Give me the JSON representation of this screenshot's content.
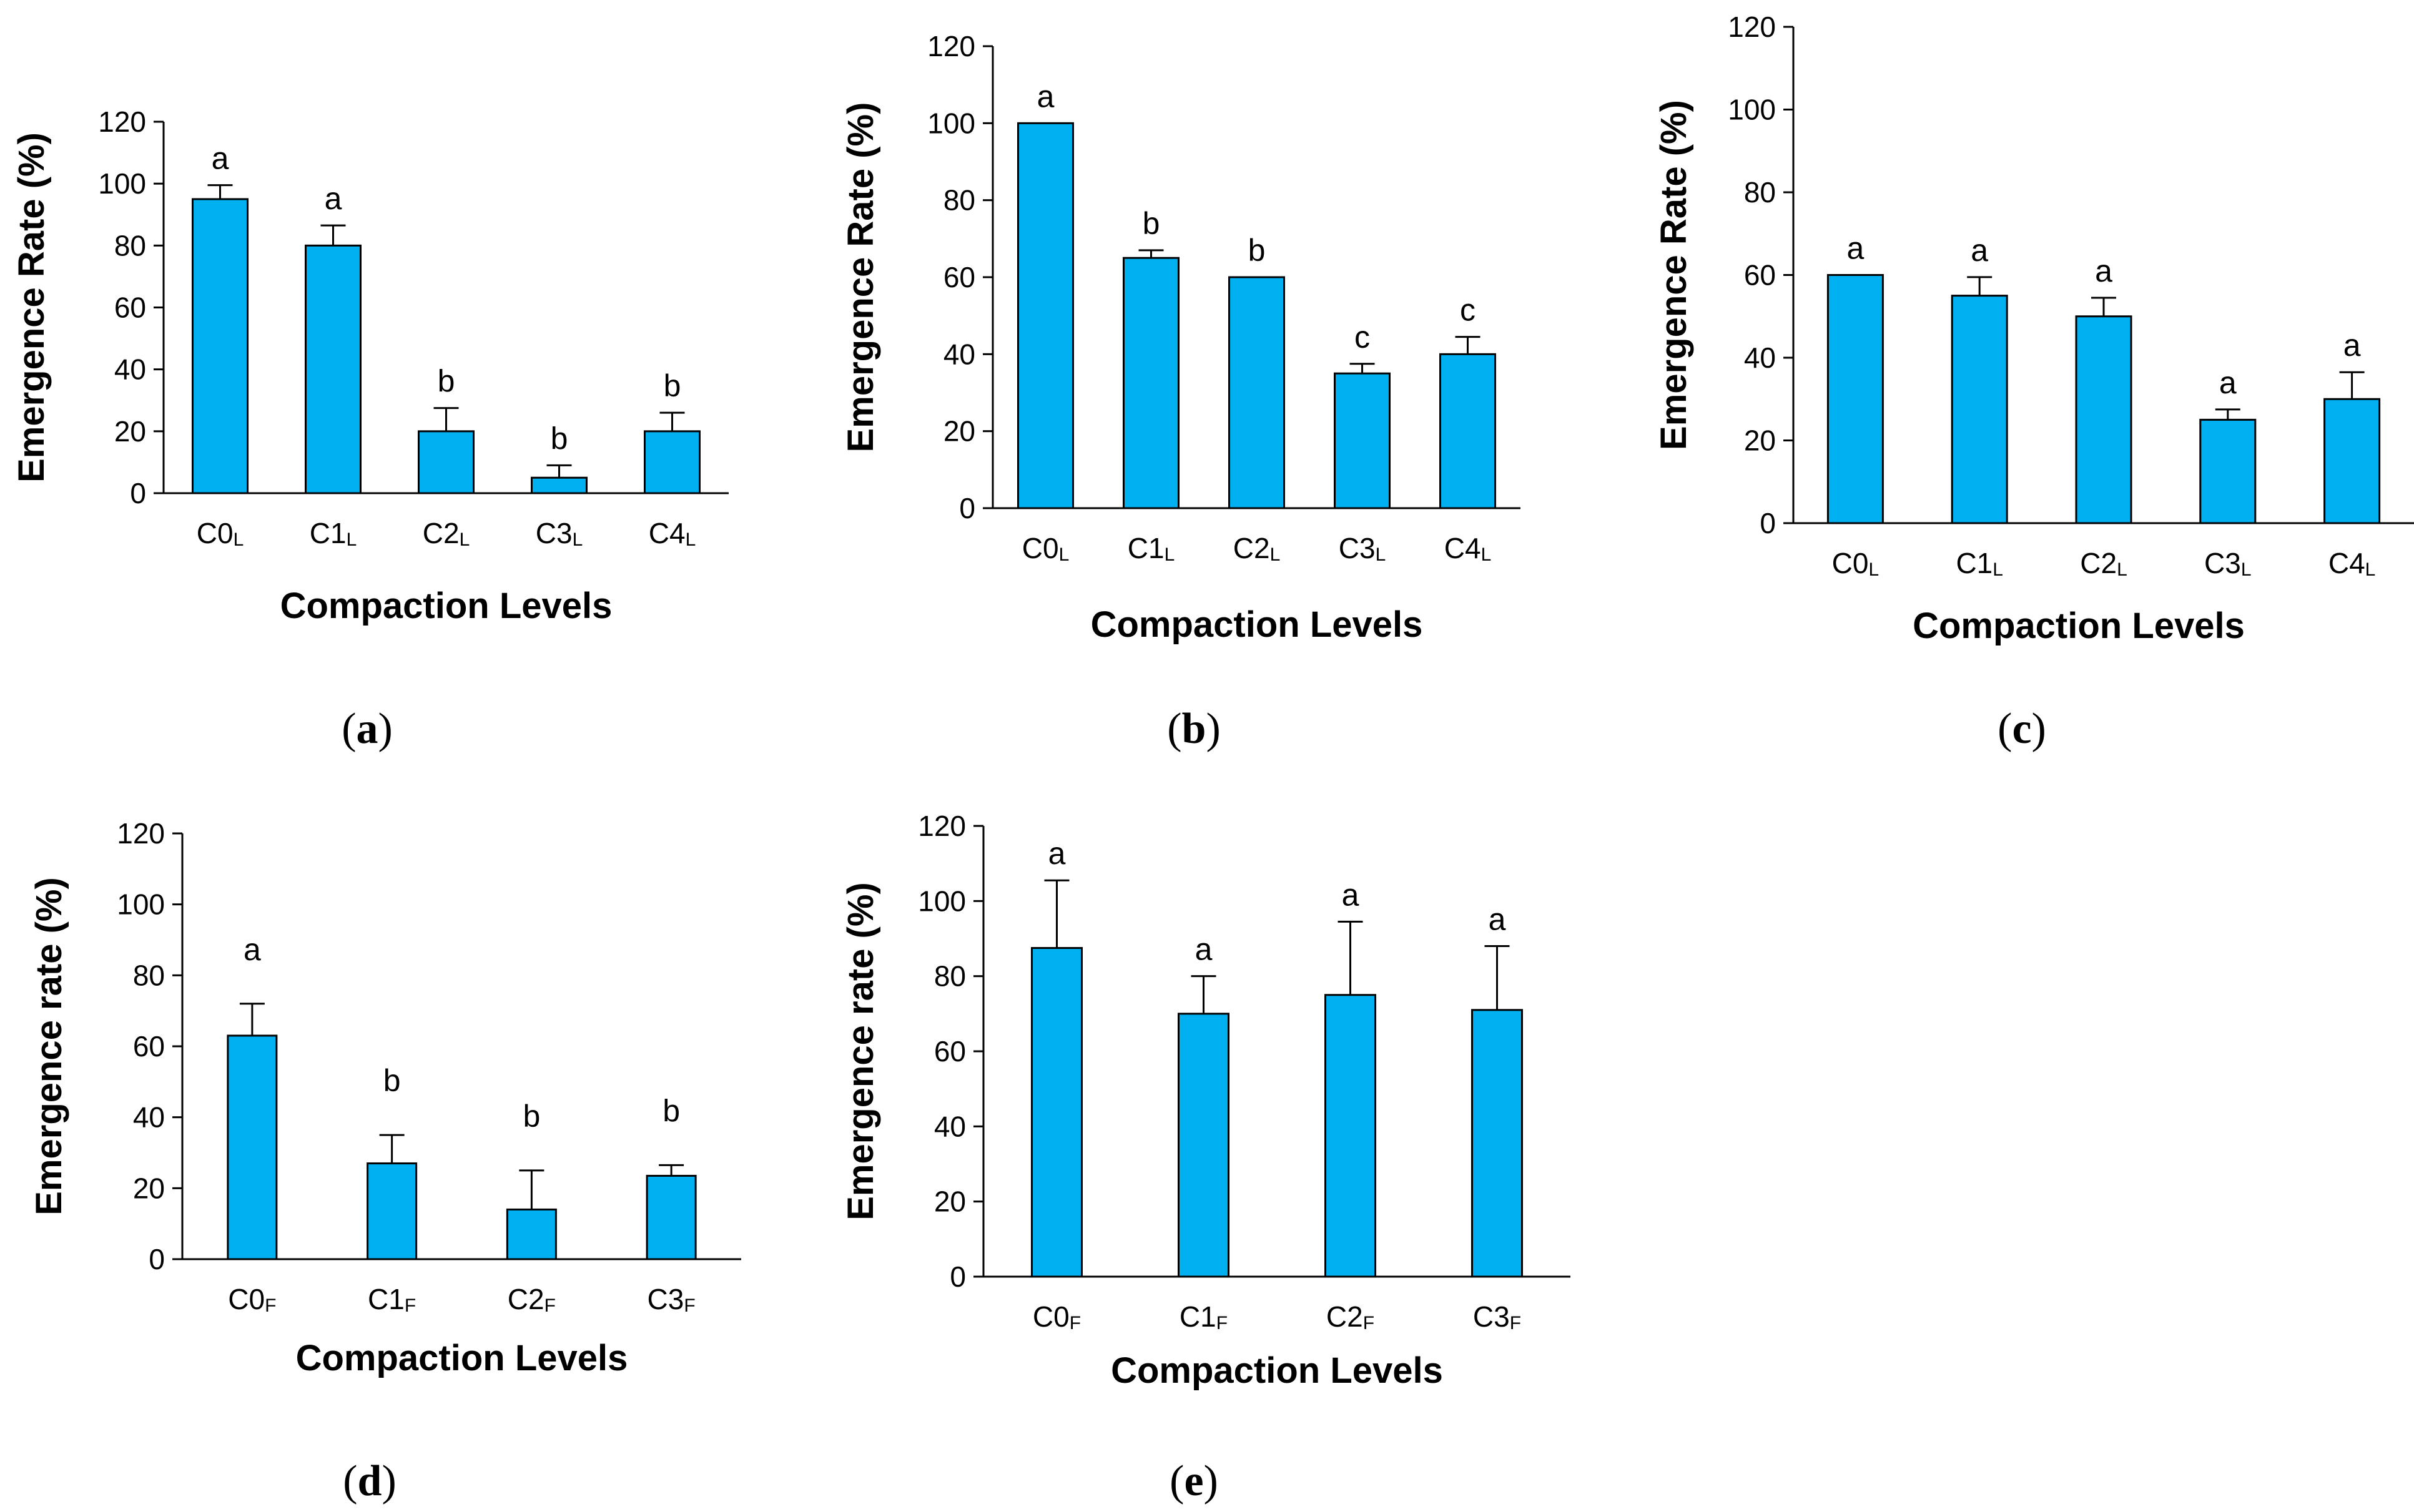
{
  "figure": {
    "bar_color": "#00B0F0",
    "bar_stroke": "#000000"
  },
  "chart_data": [
    {
      "id": "a",
      "type": "bar",
      "caption": "a",
      "ylabel": "Emergence  Rate (%)",
      "xlabel": "Compaction Levels",
      "ylim": [
        0,
        120
      ],
      "yticks": [
        0,
        20,
        40,
        60,
        80,
        100,
        120
      ],
      "categories": [
        {
          "main": "C0",
          "sub": "L"
        },
        {
          "main": "C1",
          "sub": "L"
        },
        {
          "main": "C2",
          "sub": "L"
        },
        {
          "main": "C3",
          "sub": "L"
        },
        {
          "main": "C4",
          "sub": "L"
        }
      ],
      "values": [
        95,
        80,
        20,
        5,
        20
      ],
      "errors": [
        4.5,
        6.5,
        7.5,
        4,
        6
      ],
      "letters": [
        "a",
        "a",
        "b",
        "b",
        "b"
      ],
      "error_caps": true
    },
    {
      "id": "b",
      "type": "bar",
      "caption": "b",
      "ylabel": "Emergence Rate (%)",
      "xlabel": "Compaction Levels",
      "ylim": [
        0,
        120
      ],
      "yticks": [
        0,
        20,
        40,
        60,
        80,
        100,
        120
      ],
      "categories": [
        {
          "main": "C0",
          "sub": "L"
        },
        {
          "main": "C1",
          "sub": "L"
        },
        {
          "main": "C2",
          "sub": "L"
        },
        {
          "main": "C3",
          "sub": "L"
        },
        {
          "main": "C4",
          "sub": "L"
        }
      ],
      "values": [
        100,
        65,
        60,
        35,
        40
      ],
      "errors": [
        0,
        2,
        0,
        2.5,
        4.5
      ],
      "letters": [
        "a",
        "b",
        "b",
        "c",
        "c"
      ],
      "error_caps": true
    },
    {
      "id": "c",
      "type": "bar",
      "caption": "c",
      "ylabel": "Emergence  Rate (%)",
      "xlabel": "Compaction Levels",
      "ylim": [
        0,
        120
      ],
      "yticks": [
        0,
        20,
        40,
        60,
        80,
        100,
        120
      ],
      "categories": [
        {
          "main": "C0",
          "sub": "L"
        },
        {
          "main": "C1",
          "sub": "L"
        },
        {
          "main": "C2",
          "sub": "L"
        },
        {
          "main": "C3",
          "sub": "L"
        },
        {
          "main": "C4",
          "sub": "L"
        }
      ],
      "values": [
        60,
        55,
        50,
        25,
        30
      ],
      "errors": [
        0,
        4.5,
        4.5,
        2.5,
        6.5
      ],
      "letters": [
        "a",
        "a",
        "a",
        "a",
        "a"
      ],
      "error_caps": true
    },
    {
      "id": "d",
      "type": "bar",
      "caption": "d",
      "ylabel": "Emergence rate (%)",
      "xlabel": "Compaction Levels",
      "ylim": [
        0,
        120
      ],
      "yticks": [
        0,
        20,
        40,
        60,
        80,
        100,
        120
      ],
      "categories": [
        {
          "main": "C0",
          "sub": "F"
        },
        {
          "main": "C1",
          "sub": "F"
        },
        {
          "main": "C2",
          "sub": "F"
        },
        {
          "main": "C3",
          "sub": "F"
        }
      ],
      "values": [
        63,
        27,
        14,
        23.5
      ],
      "errors": [
        9,
        8,
        11,
        3
      ],
      "letters": [
        "a",
        "b",
        "b",
        "b"
      ],
      "error_caps": true
    },
    {
      "id": "e",
      "type": "bar",
      "caption": "e",
      "ylabel": "Emergence rate (%)",
      "xlabel": "Compaction Levels",
      "ylim": [
        0,
        120
      ],
      "yticks": [
        0,
        20,
        40,
        60,
        80,
        100,
        120
      ],
      "categories": [
        {
          "main": "C0",
          "sub": "F"
        },
        {
          "main": "C1",
          "sub": "F"
        },
        {
          "main": "C2",
          "sub": "F"
        },
        {
          "main": "C3",
          "sub": "F"
        }
      ],
      "values": [
        87.5,
        70,
        75,
        71
      ],
      "errors": [
        18,
        10,
        19.5,
        17
      ],
      "letters": [
        "a",
        "a",
        "a",
        "a"
      ],
      "error_caps": true
    }
  ]
}
